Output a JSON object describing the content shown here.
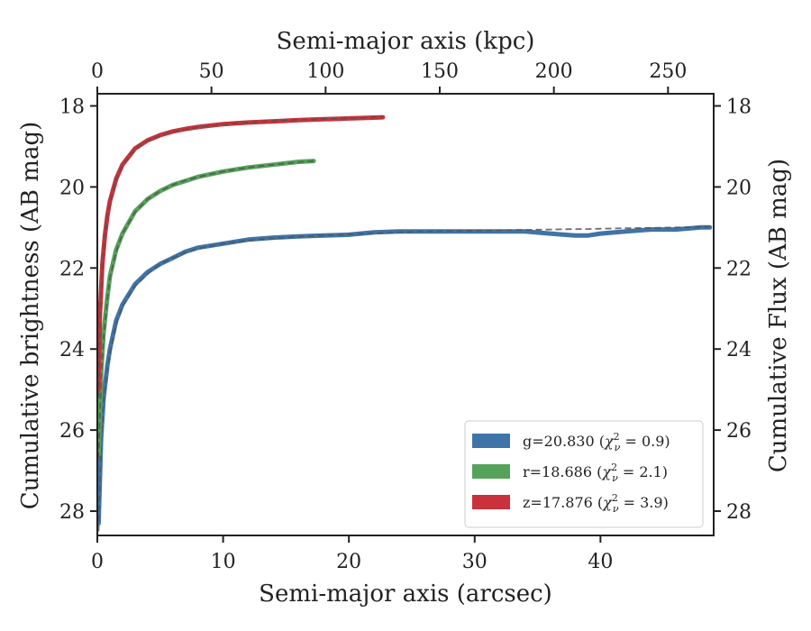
{
  "chart_data": {
    "type": "line",
    "title": "",
    "xlabel": "Semi-major axis (arcsec)",
    "x2label": "Semi-major axis (kpc)",
    "ylabel": "Cumulative brightness (AB mag)",
    "y2label": "Cumulative Flux (AB mag)",
    "xlim": [
      0,
      49
    ],
    "x2lim": [
      0,
      270
    ],
    "ylim": [
      28.6,
      17.7
    ],
    "y_inverted": true,
    "xticks": [
      "0",
      "10",
      "20",
      "30",
      "40"
    ],
    "x2ticks": [
      "0",
      "50",
      "100",
      "150",
      "200",
      "250"
    ],
    "yticks": [
      "18",
      "20",
      "22",
      "24",
      "26",
      "28"
    ],
    "legend_position": "lower-right",
    "series": [
      {
        "name": "g",
        "legend": "g=20.830 (χ²ν = 0.9)",
        "legend_parts": {
          "pre": "g=20.830 (",
          "chi": "χ",
          "sup": "2",
          "sub": "ν",
          "post": " = 0.9)"
        },
        "color": "#3f74a8",
        "x": [
          0.1,
          0.3,
          0.5,
          0.8,
          1.0,
          1.5,
          2.0,
          3.0,
          4.0,
          5.0,
          6.0,
          7.0,
          8.0,
          10.0,
          12.0,
          14.0,
          16.0,
          18.0,
          20.0,
          22.0,
          24.0,
          26.0,
          28.0,
          30.0,
          32.0,
          34.0,
          36.0,
          38.0,
          39.0,
          40.0,
          42.0,
          44.0,
          46.0,
          48.0,
          48.7
        ],
        "y": [
          28.3,
          26.2,
          25.2,
          24.4,
          24.0,
          23.3,
          22.9,
          22.4,
          22.1,
          21.9,
          21.75,
          21.6,
          21.5,
          21.4,
          21.3,
          21.25,
          21.22,
          21.2,
          21.18,
          21.12,
          21.1,
          21.1,
          21.1,
          21.1,
          21.1,
          21.1,
          21.15,
          21.2,
          21.2,
          21.15,
          21.1,
          21.05,
          21.05,
          21.0,
          21.0
        ],
        "fit_y": [
          28.5,
          26.3,
          25.3,
          24.5,
          24.1,
          23.4,
          22.95,
          22.45,
          22.15,
          21.9,
          21.75,
          21.62,
          21.52,
          21.4,
          21.32,
          21.27,
          21.23,
          21.2,
          21.17,
          21.14,
          21.12,
          21.1,
          21.09,
          21.08,
          21.07,
          21.06,
          21.05,
          21.04,
          21.04,
          21.03,
          21.02,
          21.01,
          21.0,
          20.99,
          20.98
        ]
      },
      {
        "name": "r",
        "legend": "r=18.686 (χ²ν = 2.1)",
        "legend_parts": {
          "pre": "r=18.686 (",
          "chi": "χ",
          "sup": "2",
          "sub": "ν",
          "post": " = 2.1)"
        },
        "color": "#55a25a",
        "x": [
          0.1,
          0.3,
          0.5,
          0.8,
          1.0,
          1.5,
          2.0,
          3.0,
          4.0,
          5.0,
          6.0,
          7.0,
          8.0,
          10.0,
          12.0,
          14.0,
          16.0,
          17.2
        ],
        "y": [
          26.6,
          24.6,
          23.6,
          22.7,
          22.2,
          21.55,
          21.15,
          20.6,
          20.3,
          20.1,
          19.95,
          19.85,
          19.75,
          19.62,
          19.52,
          19.45,
          19.38,
          19.36
        ],
        "fit_y": [
          26.7,
          24.7,
          23.7,
          22.75,
          22.25,
          21.6,
          21.15,
          20.62,
          20.3,
          20.1,
          19.95,
          19.84,
          19.75,
          19.62,
          19.52,
          19.45,
          19.39,
          19.36
        ]
      },
      {
        "name": "z",
        "legend": "z=17.876 (χ²ν = 3.9)",
        "legend_parts": {
          "pre": "z=17.876 (",
          "chi": "χ",
          "sup": "2",
          "sub": "ν",
          "post": " = 3.9)"
        },
        "color": "#c9323a",
        "x": [
          0.1,
          0.2,
          0.4,
          0.6,
          0.8,
          1.0,
          1.5,
          2.0,
          3.0,
          4.0,
          5.0,
          6.0,
          7.0,
          8.0,
          10.0,
          12.0,
          14.0,
          16.0,
          18.0,
          20.0,
          22.0,
          22.7
        ],
        "y": [
          25.0,
          23.2,
          21.9,
          21.2,
          20.7,
          20.35,
          19.8,
          19.45,
          19.05,
          18.85,
          18.72,
          18.63,
          18.57,
          18.52,
          18.45,
          18.41,
          18.38,
          18.35,
          18.33,
          18.31,
          18.29,
          18.28
        ],
        "fit_y": [
          25.2,
          23.3,
          21.95,
          21.25,
          20.75,
          20.4,
          19.82,
          19.47,
          19.07,
          18.86,
          18.73,
          18.64,
          18.58,
          18.53,
          18.46,
          18.41,
          18.37,
          18.34,
          18.32,
          18.3,
          18.28,
          18.27
        ]
      }
    ]
  }
}
